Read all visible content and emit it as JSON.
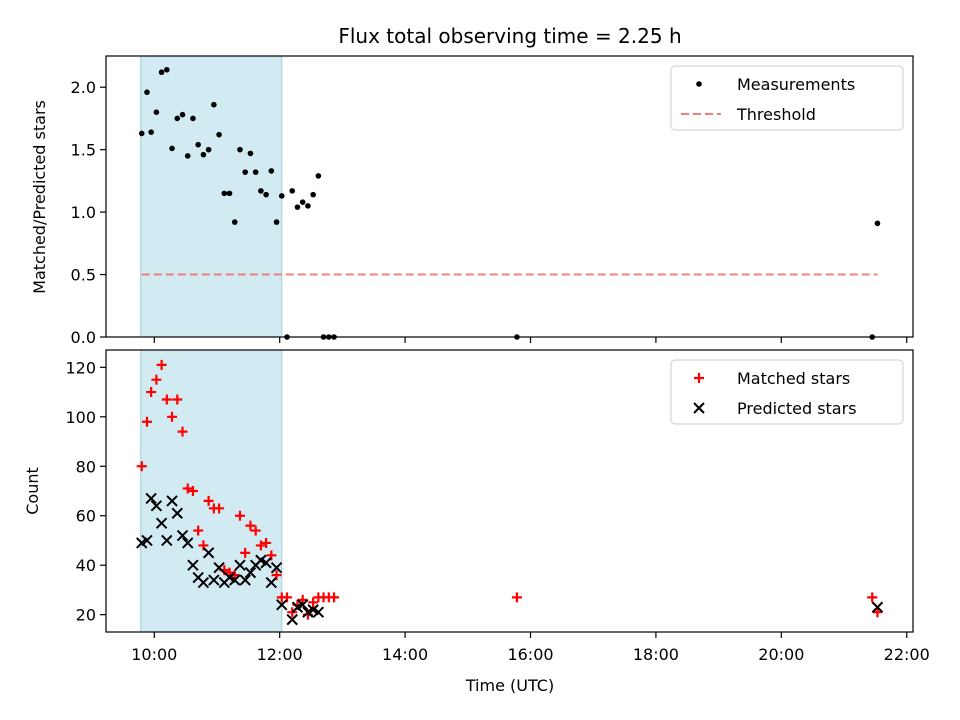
{
  "chart_data": [
    {
      "type": "scatter",
      "title": "Flux total observing time = 2.25 h",
      "xlabel": "",
      "ylabel": "Matched/Predicted stars",
      "ylim": [
        0,
        2.25
      ],
      "xlim_hours": [
        9.23,
        22.1
      ],
      "yticks": [
        "0.0",
        "0.5",
        "1.0",
        "1.5",
        "2.0"
      ],
      "grid": false,
      "legend_position": "top-right",
      "shaded_interval": [
        "09:47",
        "12:02"
      ],
      "shade_color": "#add8e6",
      "series": [
        {
          "name": "Measurements",
          "marker": "dot",
          "color": "#000000",
          "points": [
            [
              "09:48",
              1.63
            ],
            [
              "09:53",
              1.96
            ],
            [
              "09:57",
              1.64
            ],
            [
              "10:02",
              1.8
            ],
            [
              "10:07",
              2.12
            ],
            [
              "10:12",
              2.14
            ],
            [
              "10:17",
              1.51
            ],
            [
              "10:22",
              1.75
            ],
            [
              "10:27",
              1.78
            ],
            [
              "10:32",
              1.45
            ],
            [
              "10:37",
              1.75
            ],
            [
              "10:42",
              1.54
            ],
            [
              "10:47",
              1.46
            ],
            [
              "10:52",
              1.5
            ],
            [
              "10:57",
              1.86
            ],
            [
              "11:02",
              1.62
            ],
            [
              "11:07",
              1.15
            ],
            [
              "11:12",
              1.15
            ],
            [
              "11:17",
              0.92
            ],
            [
              "11:22",
              1.5
            ],
            [
              "11:27",
              1.32
            ],
            [
              "11:32",
              1.47
            ],
            [
              "11:37",
              1.32
            ],
            [
              "11:42",
              1.17
            ],
            [
              "11:47",
              1.14
            ],
            [
              "11:52",
              1.33
            ],
            [
              "11:57",
              0.92
            ],
            [
              "12:02",
              1.13
            ],
            [
              "12:07",
              0.0
            ],
            [
              "12:12",
              1.17
            ],
            [
              "12:17",
              1.04
            ],
            [
              "12:22",
              1.08
            ],
            [
              "12:27",
              1.05
            ],
            [
              "12:32",
              1.14
            ],
            [
              "12:37",
              1.29
            ],
            [
              "12:42",
              0.0
            ],
            [
              "12:47",
              0.0
            ],
            [
              "12:52",
              0.0
            ],
            [
              "15:47",
              0.0
            ],
            [
              "21:27",
              0.0
            ],
            [
              "21:32",
              0.91
            ]
          ]
        },
        {
          "name": "Threshold",
          "marker": "dashed-line",
          "color": "#f08080",
          "points": [
            [
              "09:48",
              0.5
            ],
            [
              "21:32",
              0.5
            ]
          ]
        }
      ]
    },
    {
      "type": "scatter",
      "title": "",
      "xlabel": "Time (UTC)",
      "ylabel": "Count",
      "ylim": [
        13,
        127
      ],
      "xlim_hours": [
        9.23,
        22.1
      ],
      "xticks": [
        "10:00",
        "12:00",
        "14:00",
        "16:00",
        "18:00",
        "20:00",
        "22:00"
      ],
      "yticks": [
        "20",
        "40",
        "60",
        "80",
        "100",
        "120"
      ],
      "grid": false,
      "legend_position": "top-right",
      "shaded_interval": [
        "09:47",
        "12:02"
      ],
      "shade_color": "#add8e6",
      "series": [
        {
          "name": "Matched stars",
          "marker": "plus",
          "color": "#ff0000",
          "points": [
            [
              "09:48",
              80
            ],
            [
              "09:53",
              98
            ],
            [
              "09:57",
              110
            ],
            [
              "10:02",
              115
            ],
            [
              "10:07",
              121
            ],
            [
              "10:12",
              107
            ],
            [
              "10:17",
              100
            ],
            [
              "10:22",
              107
            ],
            [
              "10:27",
              94
            ],
            [
              "10:32",
              71
            ],
            [
              "10:37",
              70
            ],
            [
              "10:42",
              54
            ],
            [
              "10:47",
              48
            ],
            [
              "10:52",
              66
            ],
            [
              "10:57",
              63
            ],
            [
              "11:02",
              63
            ],
            [
              "11:07",
              38
            ],
            [
              "11:12",
              37
            ],
            [
              "11:17",
              36
            ],
            [
              "11:22",
              60
            ],
            [
              "11:27",
              45
            ],
            [
              "11:32",
              56
            ],
            [
              "11:37",
              54
            ],
            [
              "11:42",
              48
            ],
            [
              "11:47",
              49
            ],
            [
              "11:52",
              44
            ],
            [
              "11:57",
              36
            ],
            [
              "12:02",
              27
            ],
            [
              "12:07",
              27
            ],
            [
              "12:12",
              21
            ],
            [
              "12:17",
              24
            ],
            [
              "12:22",
              26
            ],
            [
              "12:27",
              20
            ],
            [
              "12:32",
              25
            ],
            [
              "12:37",
              27
            ],
            [
              "12:42",
              27
            ],
            [
              "12:47",
              27
            ],
            [
              "12:52",
              27
            ],
            [
              "15:47",
              27
            ],
            [
              "21:27",
              27
            ],
            [
              "21:32",
              21
            ]
          ]
        },
        {
          "name": "Predicted stars",
          "marker": "cross",
          "color": "#000000",
          "points": [
            [
              "09:48",
              49
            ],
            [
              "09:53",
              50
            ],
            [
              "09:57",
              67
            ],
            [
              "10:02",
              64
            ],
            [
              "10:07",
              57
            ],
            [
              "10:12",
              50
            ],
            [
              "10:17",
              66
            ],
            [
              "10:22",
              61
            ],
            [
              "10:27",
              52
            ],
            [
              "10:32",
              49
            ],
            [
              "10:37",
              40
            ],
            [
              "10:42",
              35
            ],
            [
              "10:47",
              33
            ],
            [
              "10:52",
              45
            ],
            [
              "10:57",
              34
            ],
            [
              "11:02",
              39
            ],
            [
              "11:07",
              33
            ],
            [
              "11:12",
              35
            ],
            [
              "11:17",
              34
            ],
            [
              "11:22",
              40
            ],
            [
              "11:27",
              34
            ],
            [
              "11:32",
              37
            ],
            [
              "11:37",
              40
            ],
            [
              "11:42",
              42
            ],
            [
              "11:47",
              41
            ],
            [
              "11:52",
              33
            ],
            [
              "11:57",
              39
            ],
            [
              "12:02",
              24
            ],
            [
              "12:12",
              18
            ],
            [
              "12:17",
              23
            ],
            [
              "12:22",
              24
            ],
            [
              "12:27",
              21
            ],
            [
              "12:32",
              22
            ],
            [
              "12:37",
              21
            ],
            [
              "21:32",
              23
            ]
          ]
        }
      ]
    }
  ]
}
